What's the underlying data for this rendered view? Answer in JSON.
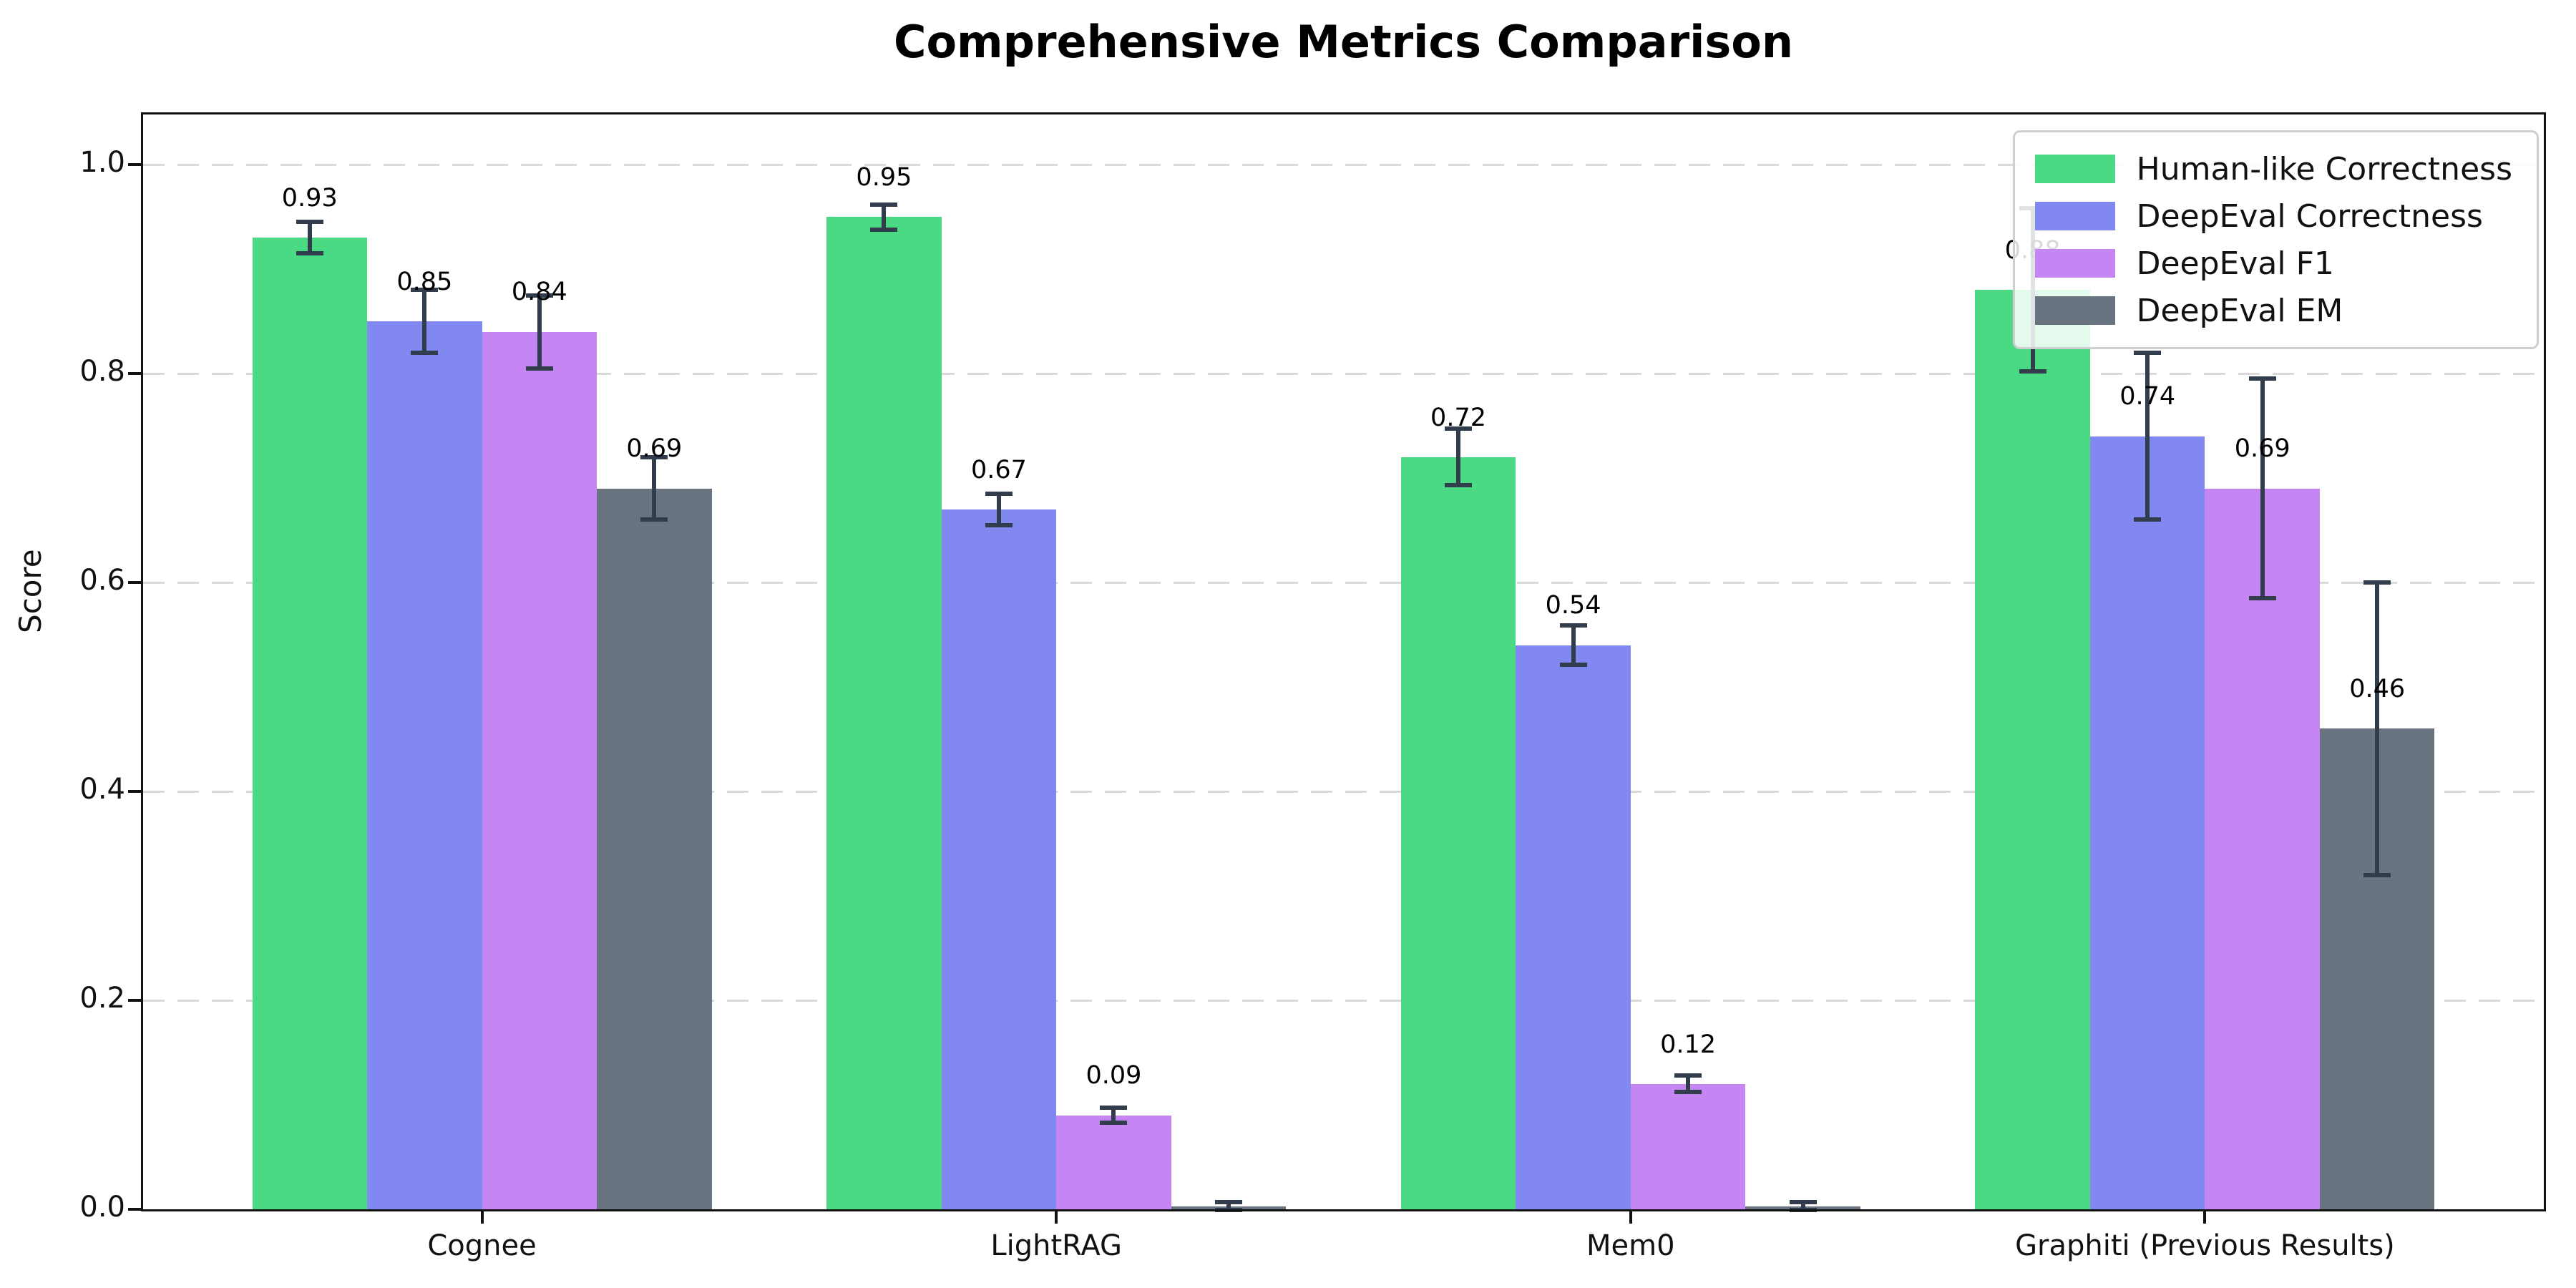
{
  "chart_data": {
    "type": "bar",
    "title": "Comprehensive Metrics Comparison",
    "ylabel": "Score",
    "xlabel": "",
    "categories": [
      "Cognee",
      "LightRAG",
      "Mem0",
      "Graphiti (Previous Results)"
    ],
    "series": [
      {
        "name": "Human-like Correctness",
        "color": "#4bd983",
        "values": [
          0.93,
          0.95,
          0.72,
          0.88
        ],
        "errors": [
          0.015,
          0.012,
          0.027,
          0.078
        ],
        "labels": [
          "0.93",
          "0.95",
          "0.72",
          "0.88"
        ]
      },
      {
        "name": "DeepEval Correctness",
        "color": "#8188ef",
        "values": [
          0.85,
          0.67,
          0.54,
          0.74
        ],
        "errors": [
          0.03,
          0.015,
          0.019,
          0.08
        ],
        "labels": [
          "0.85",
          "0.67",
          "0.54",
          "0.74"
        ]
      },
      {
        "name": "DeepEval F1",
        "color": "#c585f3",
        "values": [
          0.84,
          0.09,
          0.12,
          0.69
        ],
        "errors": [
          0.035,
          0.007,
          0.008,
          0.105
        ],
        "labels": [
          "0.84",
          "0.09",
          "0.12",
          "0.69"
        ]
      },
      {
        "name": "DeepEval EM",
        "color": "#6a7380",
        "values": [
          0.69,
          0.003,
          0.003,
          0.46
        ],
        "errors": [
          0.03,
          0.004,
          0.004,
          0.14
        ],
        "labels": [
          "0.69",
          "",
          "",
          "0.46"
        ]
      }
    ],
    "y_ticks": [
      "0.0",
      "0.2",
      "0.4",
      "0.6",
      "0.8",
      "1.0"
    ],
    "ylim": [
      0.0,
      1.048
    ],
    "grid": "horizontal-dashed",
    "legend_position": "upper right",
    "error_bar_color": "#313c4d"
  }
}
